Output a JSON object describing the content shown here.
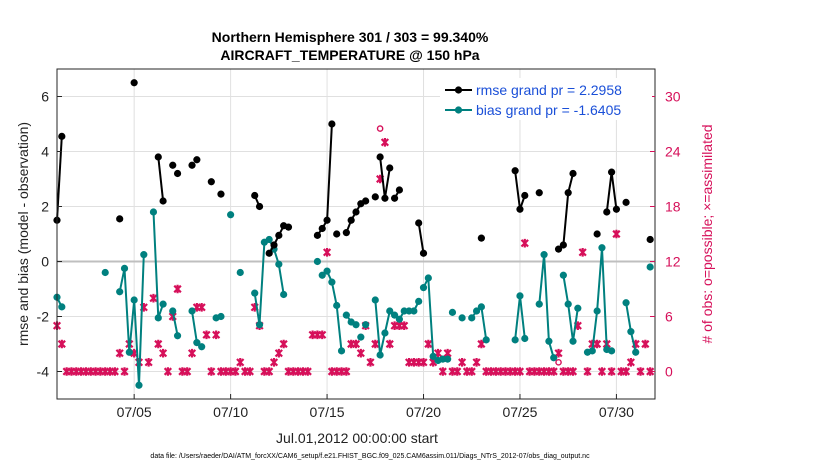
{
  "chart_data": {
    "type": "scatter",
    "title_line1": "Northern Hemisphere 301 / 303 = 99.340%",
    "title_line2": "AIRCRAFT_TEMPERATURE @ 150 hPa",
    "ylabel": "rmse and bias (model - observation)",
    "ylabel_right": "# of obs: o=possible; ×=assimilated",
    "xlabel": "Jul.01,2012 00:00:00 start",
    "footer": "data file: /Users/raeder/DAI/ATM_forcXX/CAM6_setup/f.e21.FHIST_BGC.f09_025.CAM6assim.011/Diags_NTrS_2012-07/obs_diag_output.nc",
    "xlim": [
      1,
      32
    ],
    "ylim": [
      -5,
      7
    ],
    "ylim_right": [
      -3,
      33
    ],
    "grid": true,
    "legend_position": "top-right",
    "x_ticks": [
      {
        "value": 5,
        "label": "07/05"
      },
      {
        "value": 10,
        "label": "07/10"
      },
      {
        "value": 15,
        "label": "07/15"
      },
      {
        "value": 20,
        "label": "07/20"
      },
      {
        "value": 25,
        "label": "07/25"
      },
      {
        "value": 30,
        "label": "07/30"
      }
    ],
    "y_ticks": [
      {
        "value": -4,
        "label": "-4"
      },
      {
        "value": -2,
        "label": "-2"
      },
      {
        "value": 0,
        "label": "0"
      },
      {
        "value": 2,
        "label": "2"
      },
      {
        "value": 4,
        "label": "4"
      },
      {
        "value": 6,
        "label": "6"
      }
    ],
    "y_ticks_right": [
      {
        "value": 0,
        "label": "0"
      },
      {
        "value": 6,
        "label": "6"
      },
      {
        "value": 12,
        "label": "12"
      },
      {
        "value": 18,
        "label": "18"
      },
      {
        "value": 24,
        "label": "24"
      },
      {
        "value": 30,
        "label": "30"
      }
    ],
    "colors": {
      "rmse": "#000000",
      "bias": "#00807f",
      "obs": "#d6105a",
      "zero_line": "#bfbfbf"
    },
    "series": [
      {
        "name": "rmse grand pr = 2.2958",
        "axis": "left",
        "segments": [
          [
            [
              1.0,
              1.5
            ],
            [
              1.25,
              4.55
            ]
          ],
          [
            [
              6.25,
              3.8
            ],
            [
              6.5,
              2.2
            ]
          ],
          [
            [
              11.25,
              2.4
            ],
            [
              11.5,
              2.0
            ]
          ],
          [
            [
              12.0,
              0.3
            ],
            [
              12.25,
              0.6
            ],
            [
              12.5,
              0.95
            ],
            [
              12.75,
              1.3
            ]
          ],
          [
            [
              14.5,
              0.95
            ],
            [
              14.75,
              1.2
            ],
            [
              15.0,
              1.5
            ],
            [
              15.25,
              5.0
            ]
          ],
          [
            [
              16.0,
              1.05
            ],
            [
              16.25,
              1.5
            ],
            [
              16.5,
              1.8
            ],
            [
              16.75,
              2.1
            ],
            [
              17.0,
              2.2
            ]
          ],
          [
            [
              17.75,
              3.8
            ],
            [
              18.0,
              2.3
            ],
            [
              18.25,
              3.4
            ]
          ],
          [
            [
              18.5,
              2.3
            ],
            [
              18.75,
              2.6
            ]
          ],
          [
            [
              19.75,
              1.4
            ],
            [
              20.0,
              0.3
            ]
          ],
          [
            [
              24.75,
              3.3
            ],
            [
              25.0,
              1.9
            ],
            [
              25.25,
              2.4
            ]
          ],
          [
            [
              27.0,
              0.45
            ],
            [
              27.25,
              0.6
            ],
            [
              27.5,
              2.5
            ],
            [
              27.75,
              3.2
            ]
          ],
          [
            [
              29.5,
              1.8
            ],
            [
              29.75,
              3.25
            ],
            [
              30.0,
              1.9
            ]
          ]
        ],
        "points": [
          [
            8.0,
            3.5
          ],
          [
            8.25,
            3.7
          ],
          [
            5.0,
            6.5
          ],
          [
            7.0,
            3.5
          ],
          [
            7.25,
            3.2
          ],
          [
            9.0,
            2.9
          ],
          [
            9.5,
            2.45
          ],
          [
            4.25,
            1.55
          ],
          [
            13.0,
            1.25
          ],
          [
            15.5,
            1.0
          ],
          [
            17.5,
            2.35
          ],
          [
            23.0,
            0.85
          ],
          [
            26.0,
            2.5
          ],
          [
            29.0,
            1.0
          ],
          [
            30.5,
            2.15
          ],
          [
            31.75,
            0.8
          ]
        ]
      },
      {
        "name": "bias grand pr = -1.6405",
        "axis": "left",
        "segments": [
          [
            [
              1.0,
              -1.3
            ],
            [
              1.25,
              -1.65
            ]
          ],
          [
            [
              4.25,
              -1.1
            ],
            [
              4.5,
              -0.25
            ],
            [
              4.75,
              -3.3
            ],
            [
              5.0,
              -1.4
            ],
            [
              5.25,
              -4.5
            ],
            [
              5.5,
              0.25
            ]
          ],
          [
            [
              6.0,
              1.8
            ],
            [
              6.25,
              -2.05
            ],
            [
              6.5,
              -1.55
            ]
          ],
          [
            [
              7.0,
              -1.8
            ],
            [
              7.25,
              -2.7
            ]
          ],
          [
            [
              8.0,
              -1.8
            ],
            [
              8.25,
              -2.95
            ],
            [
              8.5,
              -3.1
            ]
          ],
          [
            [
              11.25,
              -1.15
            ],
            [
              11.5,
              -2.3
            ],
            [
              11.75,
              0.7
            ],
            [
              12.0,
              0.8
            ],
            [
              12.25,
              0.45
            ],
            [
              12.5,
              -0.1
            ],
            [
              12.75,
              -1.2
            ]
          ],
          [
            [
              14.75,
              -0.5
            ],
            [
              15.0,
              -0.35
            ],
            [
              15.25,
              -0.75
            ],
            [
              15.5,
              -1.6
            ],
            [
              15.75,
              -3.25
            ]
          ],
          [
            [
              16.0,
              -1.95
            ],
            [
              16.25,
              -2.2
            ],
            [
              16.5,
              -2.3
            ]
          ],
          [
            [
              17.5,
              -1.4
            ],
            [
              17.75,
              -3.4
            ],
            [
              18.0,
              -2.6
            ],
            [
              18.25,
              -1.8
            ],
            [
              18.5,
              -1.95
            ],
            [
              18.75,
              -2.1
            ],
            [
              19.0,
              -1.8
            ],
            [
              19.25,
              -1.8
            ],
            [
              19.5,
              -1.8
            ],
            [
              19.75,
              -1.45
            ]
          ],
          [
            [
              20.0,
              -0.95
            ],
            [
              20.25,
              -0.6
            ],
            [
              20.5,
              -3.45
            ],
            [
              20.75,
              -3.6
            ]
          ],
          [
            [
              22.5,
              -2.05
            ],
            [
              22.75,
              -1.8
            ],
            [
              23.0,
              -1.65
            ],
            [
              23.25,
              -2.85
            ]
          ],
          [
            [
              24.75,
              -2.85
            ],
            [
              25.0,
              -1.25
            ],
            [
              25.25,
              -2.8
            ]
          ],
          [
            [
              26.0,
              -1.55
            ],
            [
              26.25,
              0.25
            ],
            [
              26.5,
              -2.9
            ],
            [
              26.75,
              -3.5
            ]
          ],
          [
            [
              27.25,
              -0.5
            ],
            [
              27.5,
              -1.55
            ],
            [
              27.75,
              -2.9
            ],
            [
              28.0,
              -1.7
            ]
          ],
          [
            [
              28.5,
              -3.3
            ],
            [
              28.75,
              -3.25
            ],
            [
              29.0,
              -1.8
            ],
            [
              29.25,
              0.5
            ],
            [
              29.5,
              -3.2
            ],
            [
              29.75,
              -3.25
            ]
          ],
          [
            [
              30.5,
              -1.5
            ],
            [
              30.75,
              -2.55
            ],
            [
              31.0,
              -3.3
            ]
          ]
        ],
        "points": [
          [
            3.5,
            -0.4
          ],
          [
            9.25,
            -2.05
          ],
          [
            9.5,
            -2.0
          ],
          [
            10.0,
            1.7
          ],
          [
            10.5,
            -0.4
          ],
          [
            14.5,
            0.0
          ],
          [
            16.75,
            -2.75
          ],
          [
            17.0,
            -2.3
          ],
          [
            21.0,
            -3.55
          ],
          [
            21.25,
            -3.55
          ],
          [
            21.5,
            -1.85
          ],
          [
            22.0,
            -2.05
          ],
          [
            31.75,
            -0.2
          ]
        ]
      },
      {
        "name": "assimilated",
        "axis": "right",
        "marker": "x",
        "points": [
          [
            1.0,
            5
          ],
          [
            1.25,
            3
          ],
          [
            1.5,
            0
          ],
          [
            1.75,
            0
          ],
          [
            2.0,
            0
          ],
          [
            2.25,
            0
          ],
          [
            2.5,
            0
          ],
          [
            2.75,
            0
          ],
          [
            3.0,
            0
          ],
          [
            3.25,
            0
          ],
          [
            3.5,
            0
          ],
          [
            3.75,
            0
          ],
          [
            4.0,
            0
          ],
          [
            4.25,
            2
          ],
          [
            4.5,
            0
          ],
          [
            4.75,
            3
          ],
          [
            5.0,
            2
          ],
          [
            5.25,
            1
          ],
          [
            5.5,
            7
          ],
          [
            5.75,
            1
          ],
          [
            6.0,
            8
          ],
          [
            6.25,
            3
          ],
          [
            6.5,
            2
          ],
          [
            6.75,
            0
          ],
          [
            7.0,
            6
          ],
          [
            7.25,
            9
          ],
          [
            7.5,
            0
          ],
          [
            7.75,
            0
          ],
          [
            8.0,
            2
          ],
          [
            8.25,
            7
          ],
          [
            8.5,
            7
          ],
          [
            8.75,
            4
          ],
          [
            9.0,
            0
          ],
          [
            9.25,
            4
          ],
          [
            9.5,
            0
          ],
          [
            9.75,
            0
          ],
          [
            10.0,
            0
          ],
          [
            10.25,
            0
          ],
          [
            10.5,
            1
          ],
          [
            10.75,
            0
          ],
          [
            11.0,
            0
          ],
          [
            11.25,
            7
          ],
          [
            11.5,
            5
          ],
          [
            11.75,
            0
          ],
          [
            12.0,
            0
          ],
          [
            12.25,
            1
          ],
          [
            12.5,
            2
          ],
          [
            12.75,
            3
          ],
          [
            13.0,
            0
          ],
          [
            13.25,
            0
          ],
          [
            13.5,
            0
          ],
          [
            13.75,
            0
          ],
          [
            14.0,
            0
          ],
          [
            14.25,
            4
          ],
          [
            14.5,
            4
          ],
          [
            14.75,
            4
          ],
          [
            15.0,
            13
          ],
          [
            15.25,
            0
          ],
          [
            15.5,
            0
          ],
          [
            15.75,
            0
          ],
          [
            16.0,
            0
          ],
          [
            16.25,
            3
          ],
          [
            16.5,
            3
          ],
          [
            16.75,
            2
          ],
          [
            17.0,
            5
          ],
          [
            17.25,
            1
          ],
          [
            17.5,
            3
          ],
          [
            17.75,
            21
          ],
          [
            18.0,
            25
          ],
          [
            18.25,
            3
          ],
          [
            18.5,
            5
          ],
          [
            18.75,
            5
          ],
          [
            19.0,
            5
          ],
          [
            19.25,
            1
          ],
          [
            19.5,
            1
          ],
          [
            19.75,
            1
          ],
          [
            20.0,
            1
          ],
          [
            20.25,
            3
          ],
          [
            20.5,
            1
          ],
          [
            20.75,
            2
          ],
          [
            21.0,
            0
          ],
          [
            21.25,
            2
          ],
          [
            21.5,
            0
          ],
          [
            21.75,
            0
          ],
          [
            22.0,
            1
          ],
          [
            22.25,
            0
          ],
          [
            22.5,
            0
          ],
          [
            22.75,
            1
          ],
          [
            23.0,
            3
          ],
          [
            23.25,
            0
          ],
          [
            23.5,
            0
          ],
          [
            23.75,
            0
          ],
          [
            24.0,
            0
          ],
          [
            24.25,
            0
          ],
          [
            24.5,
            0
          ],
          [
            24.75,
            0
          ],
          [
            25.0,
            0
          ],
          [
            25.25,
            14
          ],
          [
            25.5,
            0
          ],
          [
            25.75,
            0
          ],
          [
            26.0,
            0
          ],
          [
            26.25,
            0
          ],
          [
            26.5,
            0
          ],
          [
            26.75,
            0
          ],
          [
            27.0,
            2
          ],
          [
            27.25,
            0
          ],
          [
            27.5,
            0
          ],
          [
            27.75,
            0
          ],
          [
            28.0,
            5
          ],
          [
            28.25,
            13
          ],
          [
            28.5,
            0
          ],
          [
            28.75,
            3
          ],
          [
            29.0,
            3
          ],
          [
            29.25,
            0
          ],
          [
            29.5,
            3
          ],
          [
            29.75,
            0
          ],
          [
            30.0,
            15
          ],
          [
            30.25,
            0
          ],
          [
            30.5,
            0
          ],
          [
            30.75,
            1
          ],
          [
            31.0,
            3
          ],
          [
            31.25,
            0
          ],
          [
            31.5,
            3
          ],
          [
            31.75,
            0
          ]
        ]
      },
      {
        "name": "possible",
        "axis": "right",
        "marker": "o",
        "points": [
          [
            17.75,
            26.5
          ],
          [
            27.0,
            1
          ]
        ]
      }
    ]
  }
}
